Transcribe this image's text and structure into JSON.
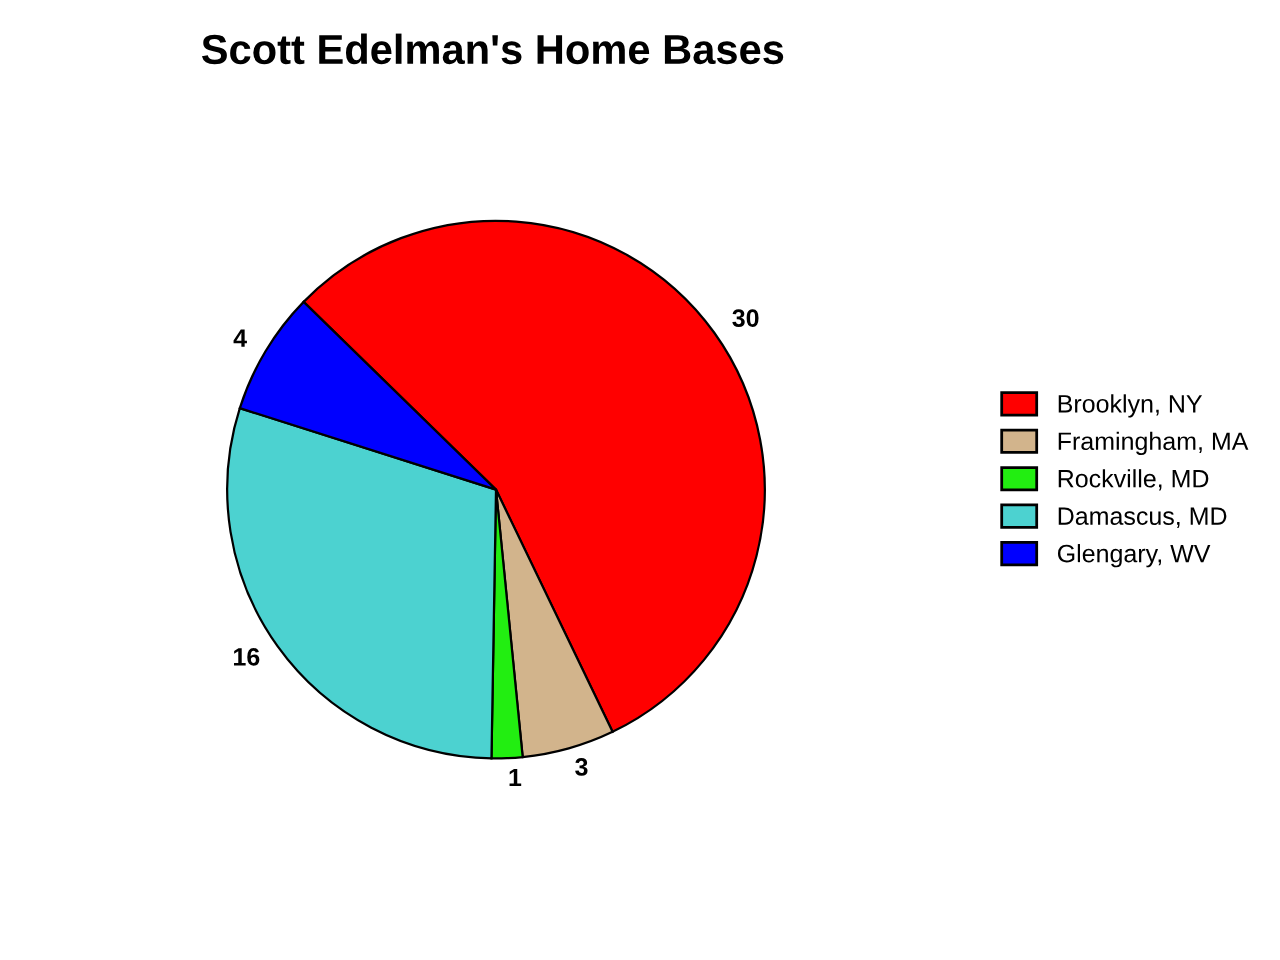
{
  "chart_data": {
    "type": "pie",
    "title": "Scott Edelman's Home Bases",
    "categories": [
      "Brooklyn, NY",
      "Framingham, MA",
      "Rockville, MD",
      "Damascus, MD",
      "Glengary, WV"
    ],
    "values": [
      30,
      3,
      1,
      16,
      4
    ],
    "colors": [
      "#ff0000",
      "#d2b48c",
      "#22ee11",
      "#4cd2d0",
      "#0000ff"
    ],
    "data_labels": true,
    "legend": "right"
  }
}
